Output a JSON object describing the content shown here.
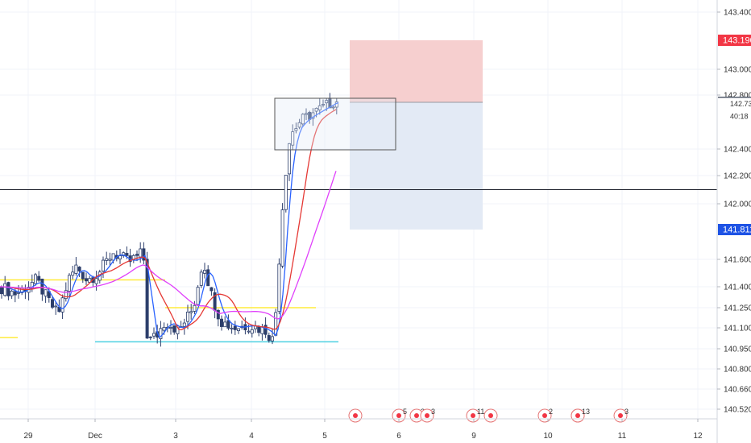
{
  "chart_data": {
    "type": "candlestick",
    "title": "",
    "xlabel": "",
    "ylabel": "",
    "ylim": [
      140.45,
      143.5
    ],
    "y_ticks": [
      "143.400",
      "143.000",
      "142.800",
      "142.400",
      "142.200",
      "142.000",
      "141.600",
      "141.400",
      "141.250",
      "141.100",
      "140.950",
      "140.800",
      "140.660",
      "140.520"
    ],
    "x_ticks": [
      "29",
      "Dec",
      "3",
      "4",
      "5",
      "6",
      "9",
      "10",
      "11",
      "12"
    ],
    "price_badges": [
      {
        "label": "143.190",
        "value": 143.19,
        "color": "#f23645"
      },
      {
        "label": "142.740",
        "value": 142.74,
        "color": "#555e6e"
      },
      {
        "label": "142.731",
        "value": 142.731,
        "color": "#ffffff"
      },
      {
        "label": "40:18",
        "value": 142.64,
        "color": "#ffffff"
      },
      {
        "label": "141.811",
        "value": 141.811,
        "color": "#1e53e5"
      }
    ],
    "horizontal_lines": [
      {
        "value": 142.1,
        "color": "#131722"
      },
      {
        "value": 141.0,
        "color": "#4dd0e1"
      },
      {
        "value": 141.45,
        "color": "#ffeb3b"
      },
      {
        "value": 141.25,
        "color": "#ffeb3b"
      },
      {
        "value": 141.03,
        "color": "#ffeb3b"
      }
    ],
    "position_tool": {
      "entry": 142.74,
      "target": 143.19,
      "stop": 141.811,
      "profit_color": "#f6cfcf",
      "loss_color": "#e3eaf5"
    },
    "events": [
      "5",
      "2",
      "3",
      "11",
      "2",
      "13",
      "3"
    ],
    "colors": {
      "up": "#ffffff",
      "down": "#2c3e6b",
      "wick": "#2c3e6b",
      "ma_fast": "#2962ff",
      "ma_mid": "#e53935",
      "ma_slow": "#e040fb"
    }
  }
}
